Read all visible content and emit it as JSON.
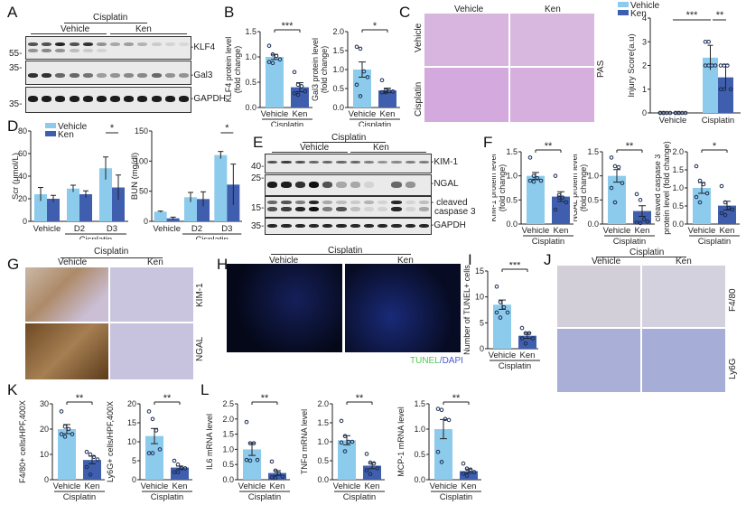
{
  "colors": {
    "vehicle": "#8ccbec",
    "ken": "#3f5fae",
    "tunel": "#4ec94e",
    "dapi": "#4a5ad0"
  },
  "panels": {
    "A": {
      "label": "A",
      "group": "Cisplatin",
      "sub": [
        "Vehicle",
        "Ken"
      ],
      "markers": [
        "55-",
        "35-",
        "35-"
      ],
      "bands": [
        "-KLF4",
        "-Gal3",
        "-GAPDH"
      ]
    },
    "B": {
      "label": "B"
    },
    "C": {
      "label": "C",
      "cols": [
        "Vehicle",
        "Ken"
      ],
      "rows": [
        "Vehicle",
        "Cisplatin"
      ],
      "stain": "PAS"
    },
    "D": {
      "label": "D"
    },
    "E": {
      "label": "E",
      "group": "Cisplatin",
      "sub": [
        "Vehicle",
        "Ken"
      ],
      "markers": [
        "40-",
        "25-",
        "15-",
        "35-"
      ],
      "bands": [
        "-KIM-1",
        "-NGAL",
        "- cleaved",
        "caspase 3",
        "-GAPDH"
      ]
    },
    "F": {
      "label": "F"
    },
    "G": {
      "label": "G",
      "group": "Cisplatin",
      "cols": [
        "Vehicle",
        "Ken"
      ],
      "rows": [
        "KIM-1",
        "NGAL"
      ]
    },
    "H": {
      "label": "H",
      "group": "Cisplatin",
      "cols": [
        "Vehicle",
        "Ken"
      ],
      "legend_a": "TUNEL",
      "legend_sep": "/",
      "legend_b": "DAPI"
    },
    "I": {
      "label": "I"
    },
    "J": {
      "label": "J",
      "group": "Cisplatin",
      "cols": [
        "Vehicle",
        "Ken"
      ],
      "rows": [
        "F4/80",
        "Ly6G"
      ]
    },
    "K": {
      "label": "K"
    },
    "L": {
      "label": "L"
    }
  },
  "chart_data": [
    {
      "id": "B1",
      "type": "bar",
      "title": "",
      "categories": [
        "Vehicle",
        "Ken"
      ],
      "group_label": "Cisplatin",
      "ylabel": "KLF4 protein level (fold change)",
      "ylim": [
        0,
        1.5
      ],
      "yticks": [
        "0.0",
        "0.5",
        "1.0",
        "1.5"
      ],
      "values": [
        1.0,
        0.4
      ],
      "sem": [
        0.05,
        0.09
      ],
      "points": [
        [
          1.22,
          1.05,
          1.02,
          0.95,
          0.9,
          0.88
        ],
        [
          0.7,
          0.45,
          0.42,
          0.32,
          0.28,
          0.25
        ]
      ],
      "significance": "***"
    },
    {
      "id": "B2",
      "type": "bar",
      "categories": [
        "Vehicle",
        "Ken"
      ],
      "group_label": "Cisplatin",
      "ylabel": "Gal3 protein level (fold change)",
      "ylim": [
        0,
        2.0
      ],
      "yticks": [
        "0.0",
        "0.5",
        "1.0",
        "1.5",
        "2.0"
      ],
      "values": [
        1.0,
        0.45
      ],
      "sem": [
        0.2,
        0.06
      ],
      "points": [
        [
          1.6,
          1.55,
          0.95,
          0.8,
          0.6,
          0.3
        ],
        [
          0.72,
          0.45,
          0.43,
          0.42,
          0.4,
          0.4
        ]
      ],
      "significance": "*"
    },
    {
      "id": "C",
      "type": "bar",
      "categories": [
        "Vehicle",
        "Cisplatin"
      ],
      "series": [
        {
          "name": "Vehicle",
          "values": [
            0,
            2.33
          ],
          "sd": [
            0,
            0.52
          ]
        },
        {
          "name": "Ken",
          "values": [
            0,
            1.5
          ],
          "sd": [
            0,
            0.55
          ]
        }
      ],
      "ylabel": "Injury Score(a.u)",
      "ylim": [
        0,
        4
      ],
      "yticks": [
        "0",
        "1",
        "2",
        "3",
        "4"
      ],
      "legend": [
        "Vehicle",
        "Ken"
      ],
      "points": {
        "Vehicle": [
          [
            0,
            0,
            0,
            0,
            0,
            0
          ],
          [
            3,
            3,
            2,
            2,
            2,
            2
          ]
        ],
        "Ken": [
          [
            0,
            0,
            0,
            0,
            0,
            0
          ],
          [
            2,
            2,
            2,
            1,
            1,
            1
          ]
        ]
      },
      "significance": [
        {
          "between": "Vehicle-Vehicle vs Cisplatin-Vehicle",
          "mark": "***"
        },
        {
          "between": "Cisplatin-Vehicle vs Cisplatin-Ken",
          "mark": "**"
        }
      ]
    },
    {
      "id": "D1",
      "type": "bar",
      "categories": [
        "Vehicle",
        "D2",
        "D3"
      ],
      "group_label": "Cisplatin",
      "series": [
        {
          "name": "Vehicle",
          "values": [
            24,
            29,
            47
          ],
          "sd": [
            6,
            3,
            10
          ]
        },
        {
          "name": "Ken",
          "values": [
            20,
            24,
            30
          ],
          "sd": [
            3,
            3,
            11
          ]
        }
      ],
      "ylabel": "Scr (μmol/L)",
      "ylim": [
        0,
        80
      ],
      "yticks": [
        "0",
        "20",
        "40",
        "60",
        "80"
      ],
      "legend": [
        "Vehicle",
        "Ken"
      ],
      "significance": [
        {
          "at": "D3",
          "mark": "*"
        }
      ]
    },
    {
      "id": "D2",
      "type": "bar",
      "categories": [
        "Vehicle",
        "D2",
        "D3"
      ],
      "group_label": "Cisplatin",
      "series": [
        {
          "name": "Vehicle",
          "values": [
            16,
            40,
            110
          ],
          "sd": [
            1,
            8,
            6
          ]
        },
        {
          "name": "Ken",
          "values": [
            5,
            37,
            61
          ],
          "sd": [
            2,
            12,
            34
          ]
        }
      ],
      "ylabel": "BUN (mg/dl)",
      "ylim": [
        0,
        150
      ],
      "yticks": [
        "0",
        "50",
        "100",
        "150"
      ],
      "significance": [
        {
          "at": "D3",
          "mark": "*"
        }
      ]
    },
    {
      "id": "F1",
      "type": "bar",
      "categories": [
        "Vehicle",
        "Ken"
      ],
      "group_label": "Cisplatin",
      "ylabel": "KIM-1 protein level (fold change)",
      "ylim": [
        0,
        1.5
      ],
      "yticks": [
        "0.0",
        "0.5",
        "1.0",
        "1.5"
      ],
      "values": [
        1.0,
        0.57
      ],
      "sem": [
        0.07,
        0.1
      ],
      "points": [
        [
          1.38,
          1.0,
          0.95,
          0.9,
          0.9,
          0.88
        ],
        [
          1.0,
          0.6,
          0.55,
          0.45,
          0.3,
          0.55
        ]
      ],
      "significance": "**"
    },
    {
      "id": "F2",
      "type": "bar",
      "categories": [
        "Vehicle",
        "Ken"
      ],
      "group_label": "Cisplatin",
      "ylabel": "NGAL protein level (fold change)",
      "ylim": [
        0,
        1.5
      ],
      "yticks": [
        "0.0",
        "0.5",
        "1.0",
        "1.5"
      ],
      "values": [
        1.0,
        0.27
      ],
      "sem": [
        0.13,
        0.11
      ],
      "points": [
        [
          1.38,
          1.2,
          1.18,
          0.85,
          0.75,
          0.45
        ],
        [
          0.62,
          0.5,
          0.1,
          0.05,
          0.03,
          0.02
        ]
      ],
      "significance": "**"
    },
    {
      "id": "F3",
      "type": "bar",
      "categories": [
        "Vehicle",
        "Ken"
      ],
      "group_label": "Cisplatin",
      "ylabel": "cleaved caspase 3 protein level (fold change)",
      "ylim": [
        0,
        2.0
      ],
      "yticks": [
        "0.0",
        "0.5",
        "1.0",
        "1.5",
        "2.0"
      ],
      "values": [
        1.0,
        0.51
      ],
      "sem": [
        0.15,
        0.12
      ],
      "points": [
        [
          1.6,
          1.2,
          1.1,
          0.85,
          0.75,
          0.6
        ],
        [
          1.05,
          0.6,
          0.45,
          0.4,
          0.3,
          0.25
        ]
      ],
      "significance": "*"
    },
    {
      "id": "I",
      "type": "bar",
      "categories": [
        "Vehicle",
        "Ken"
      ],
      "group_label": "Cisplatin",
      "ylabel": "Number of TUNEL+ cells",
      "ylim": [
        0,
        15
      ],
      "yticks": [
        "0",
        "5",
        "10",
        "15"
      ],
      "values": [
        8.5,
        2.5
      ],
      "sem": [
        0.9,
        0.5
      ],
      "points": [
        [
          12,
          9,
          8,
          7,
          7,
          6
        ],
        [
          4,
          3,
          3,
          2,
          2,
          1
        ]
      ],
      "significance": "***"
    },
    {
      "id": "K1",
      "type": "bar",
      "categories": [
        "Vehicle",
        "Ken"
      ],
      "group_label": "Cisplatin",
      "ylabel": "F4/80+ cells/HPF,400X",
      "ylim": [
        0,
        30
      ],
      "yticks": [
        "0",
        "10",
        "20",
        "30"
      ],
      "values": [
        20,
        7.8
      ],
      "sem": [
        1.8,
        1.5
      ],
      "points": [
        [
          27,
          21,
          20,
          18,
          18,
          17
        ],
        [
          11,
          10,
          9,
          8,
          5,
          2
        ]
      ],
      "significance": "**"
    },
    {
      "id": "K2",
      "type": "bar",
      "categories": [
        "Vehicle",
        "Ken"
      ],
      "group_label": "Cisplatin",
      "ylabel": "Ly6G+ cells/HPF,400X",
      "ylim": [
        0,
        20
      ],
      "yticks": [
        "0",
        "5",
        "10",
        "15",
        "20"
      ],
      "values": [
        11.5,
        3.2
      ],
      "sem": [
        2.0,
        0.4
      ],
      "points": [
        [
          18,
          16,
          13,
          8,
          7,
          7
        ],
        [
          5,
          4,
          3,
          3,
          2,
          2
        ]
      ],
      "significance": "**"
    },
    {
      "id": "L1",
      "type": "bar",
      "categories": [
        "Vehicle",
        "Ken"
      ],
      "group_label": "Cisplatin",
      "ylabel": "IL6 mRNA level",
      "ylim": [
        0,
        2.5
      ],
      "yticks": [
        "0.0",
        "0.5",
        "1.0",
        "1.5",
        "2.0",
        "2.5"
      ],
      "values": [
        1.0,
        0.22
      ],
      "sem": [
        0.2,
        0.08
      ],
      "points": [
        [
          1.9,
          1.2,
          1.2,
          0.65,
          0.65,
          0.63
        ],
        [
          0.6,
          0.3,
          0.2,
          0.1,
          0.08,
          0.05
        ]
      ],
      "significance": "**"
    },
    {
      "id": "L2",
      "type": "bar",
      "categories": [
        "Vehicle",
        "Ken"
      ],
      "group_label": "Cisplatin",
      "ylabel": "TNFα mRNA level",
      "ylim": [
        0,
        2.0
      ],
      "yticks": [
        "0.0",
        "0.5",
        "1.0",
        "1.5",
        "2.0"
      ],
      "values": [
        1.04,
        0.37
      ],
      "sem": [
        0.12,
        0.08
      ],
      "points": [
        [
          1.55,
          1.15,
          1.0,
          1.0,
          0.98,
          0.75
        ],
        [
          0.68,
          0.45,
          0.43,
          0.3,
          0.25,
          0.15
        ]
      ],
      "significance": "**"
    },
    {
      "id": "L3",
      "type": "bar",
      "categories": [
        "Vehicle",
        "Ken"
      ],
      "group_label": "Cisplatin",
      "ylabel": "MCP-1 mRNA level",
      "ylim": [
        0,
        1.5
      ],
      "yticks": [
        "0.0",
        "0.5",
        "1.0",
        "1.5"
      ],
      "values": [
        1.0,
        0.17
      ],
      "sem": [
        0.19,
        0.04
      ],
      "points": [
        [
          1.4,
          1.38,
          1.2,
          1.18,
          0.55,
          0.35
        ],
        [
          0.32,
          0.22,
          0.2,
          0.15,
          0.12,
          0.08
        ]
      ],
      "significance": "**"
    }
  ]
}
